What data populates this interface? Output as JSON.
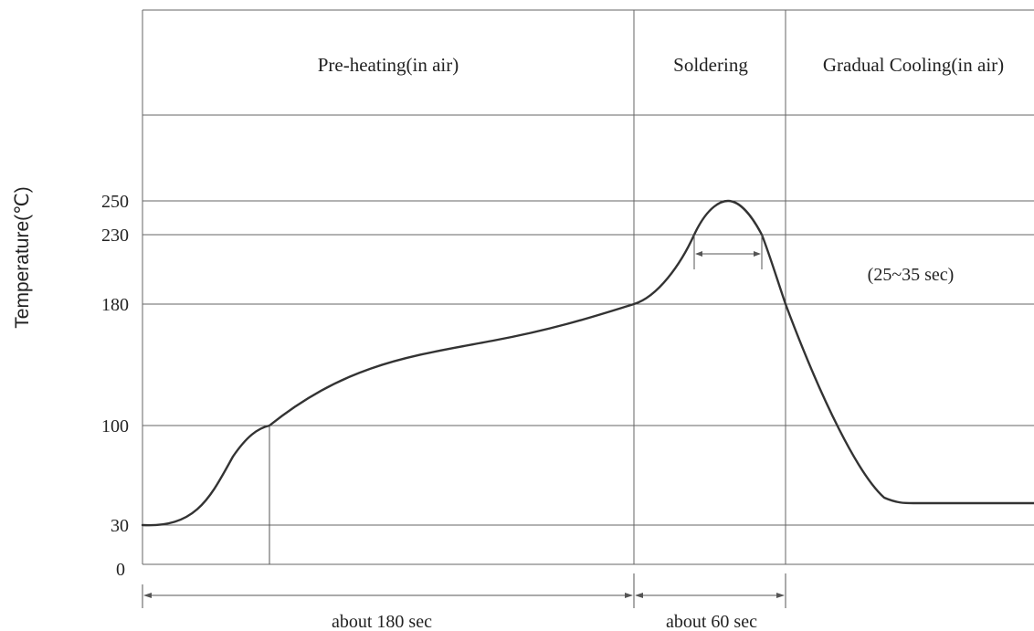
{
  "chart_data": {
    "type": "line",
    "title": "",
    "ylabel": "Temperature(℃)",
    "y_ticks": [
      "250",
      "230",
      "180",
      "100",
      "30",
      "0"
    ],
    "ylim": [
      0,
      250
    ],
    "zones": [
      {
        "label": "Pre-heating(in air)"
      },
      {
        "label": "Soldering"
      },
      {
        "label": "Gradual Cooling(in air)"
      }
    ],
    "durations": [
      {
        "label": "about 180 sec",
        "seconds": 180
      },
      {
        "label": "about 60 sec",
        "seconds": 60
      }
    ],
    "annotation": "(25~35 sec)",
    "series": [
      {
        "x": [
          0,
          20,
          61,
          120,
          180,
          200,
          225,
          240,
          255,
          300,
          340
        ],
        "y": [
          30,
          40,
          100,
          148,
          180,
          230,
          250,
          230,
          180,
          75,
          48
        ]
      }
    ],
    "grid": true,
    "legend": "none"
  }
}
